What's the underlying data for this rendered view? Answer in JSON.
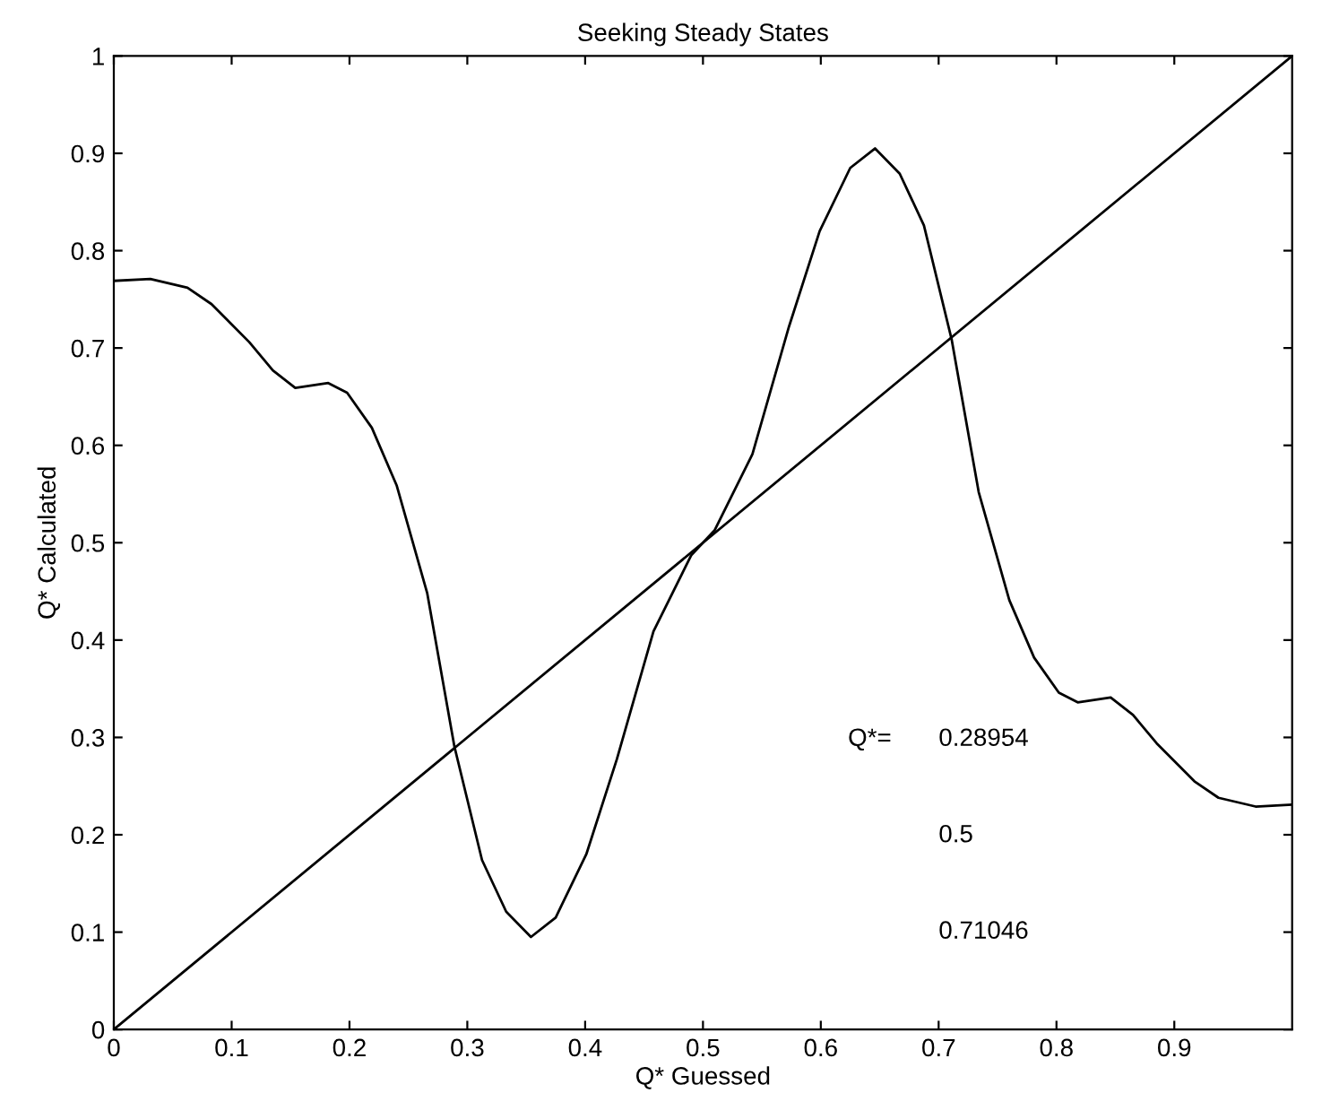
{
  "chart_data": {
    "type": "line",
    "title": "Seeking Steady States",
    "xlabel": "Q* Guessed",
    "ylabel": "Q* Calculated",
    "series": [
      {
        "color": "#000000",
        "x": [
          0,
          0.031,
          0.0625,
          0.083,
          0.115,
          0.135,
          0.154,
          0.182,
          0.198,
          0.219,
          0.24,
          0.266,
          0.289,
          0.3125,
          0.333,
          0.354,
          0.375,
          0.401,
          0.427,
          0.458,
          0.49,
          0.5,
          0.51,
          0.542,
          0.573,
          0.599,
          0.625,
          0.646,
          0.667,
          0.6875,
          0.711,
          0.734,
          0.76,
          0.781,
          0.802,
          0.818,
          0.846,
          0.865,
          0.885,
          0.917,
          0.9375,
          0.969,
          1.0
        ],
        "values": [
          0.769,
          0.771,
          0.762,
          0.745,
          0.706,
          0.677,
          0.659,
          0.664,
          0.654,
          0.618,
          0.559,
          0.448,
          0.291,
          0.174,
          0.121,
          0.095,
          0.115,
          0.18,
          0.278,
          0.409,
          0.487,
          0.5,
          0.513,
          0.591,
          0.722,
          0.82,
          0.885,
          0.905,
          0.879,
          0.826,
          0.709,
          0.552,
          0.441,
          0.382,
          0.346,
          0.336,
          0.341,
          0.323,
          0.294,
          0.255,
          0.238,
          0.229,
          0.231
        ]
      },
      {
        "color": "#000000",
        "x": [
          0,
          1
        ],
        "values": [
          0,
          1
        ]
      }
    ],
    "annotations": [
      "Q*=",
      "0.28954",
      "0.5",
      "0.71046"
    ],
    "xlim": [
      0,
      1
    ],
    "ylim": [
      0,
      1
    ],
    "xticks": [
      0,
      0.1,
      0.2,
      0.3,
      0.4,
      0.5,
      0.6,
      0.7,
      0.8,
      0.9
    ],
    "yticks": [
      0,
      0.1,
      0.2,
      0.3,
      0.4,
      0.5,
      0.6,
      0.7,
      0.8,
      0.9,
      1
    ],
    "grid": false,
    "legend": false,
    "marker": "none",
    "line_style": "solid"
  }
}
